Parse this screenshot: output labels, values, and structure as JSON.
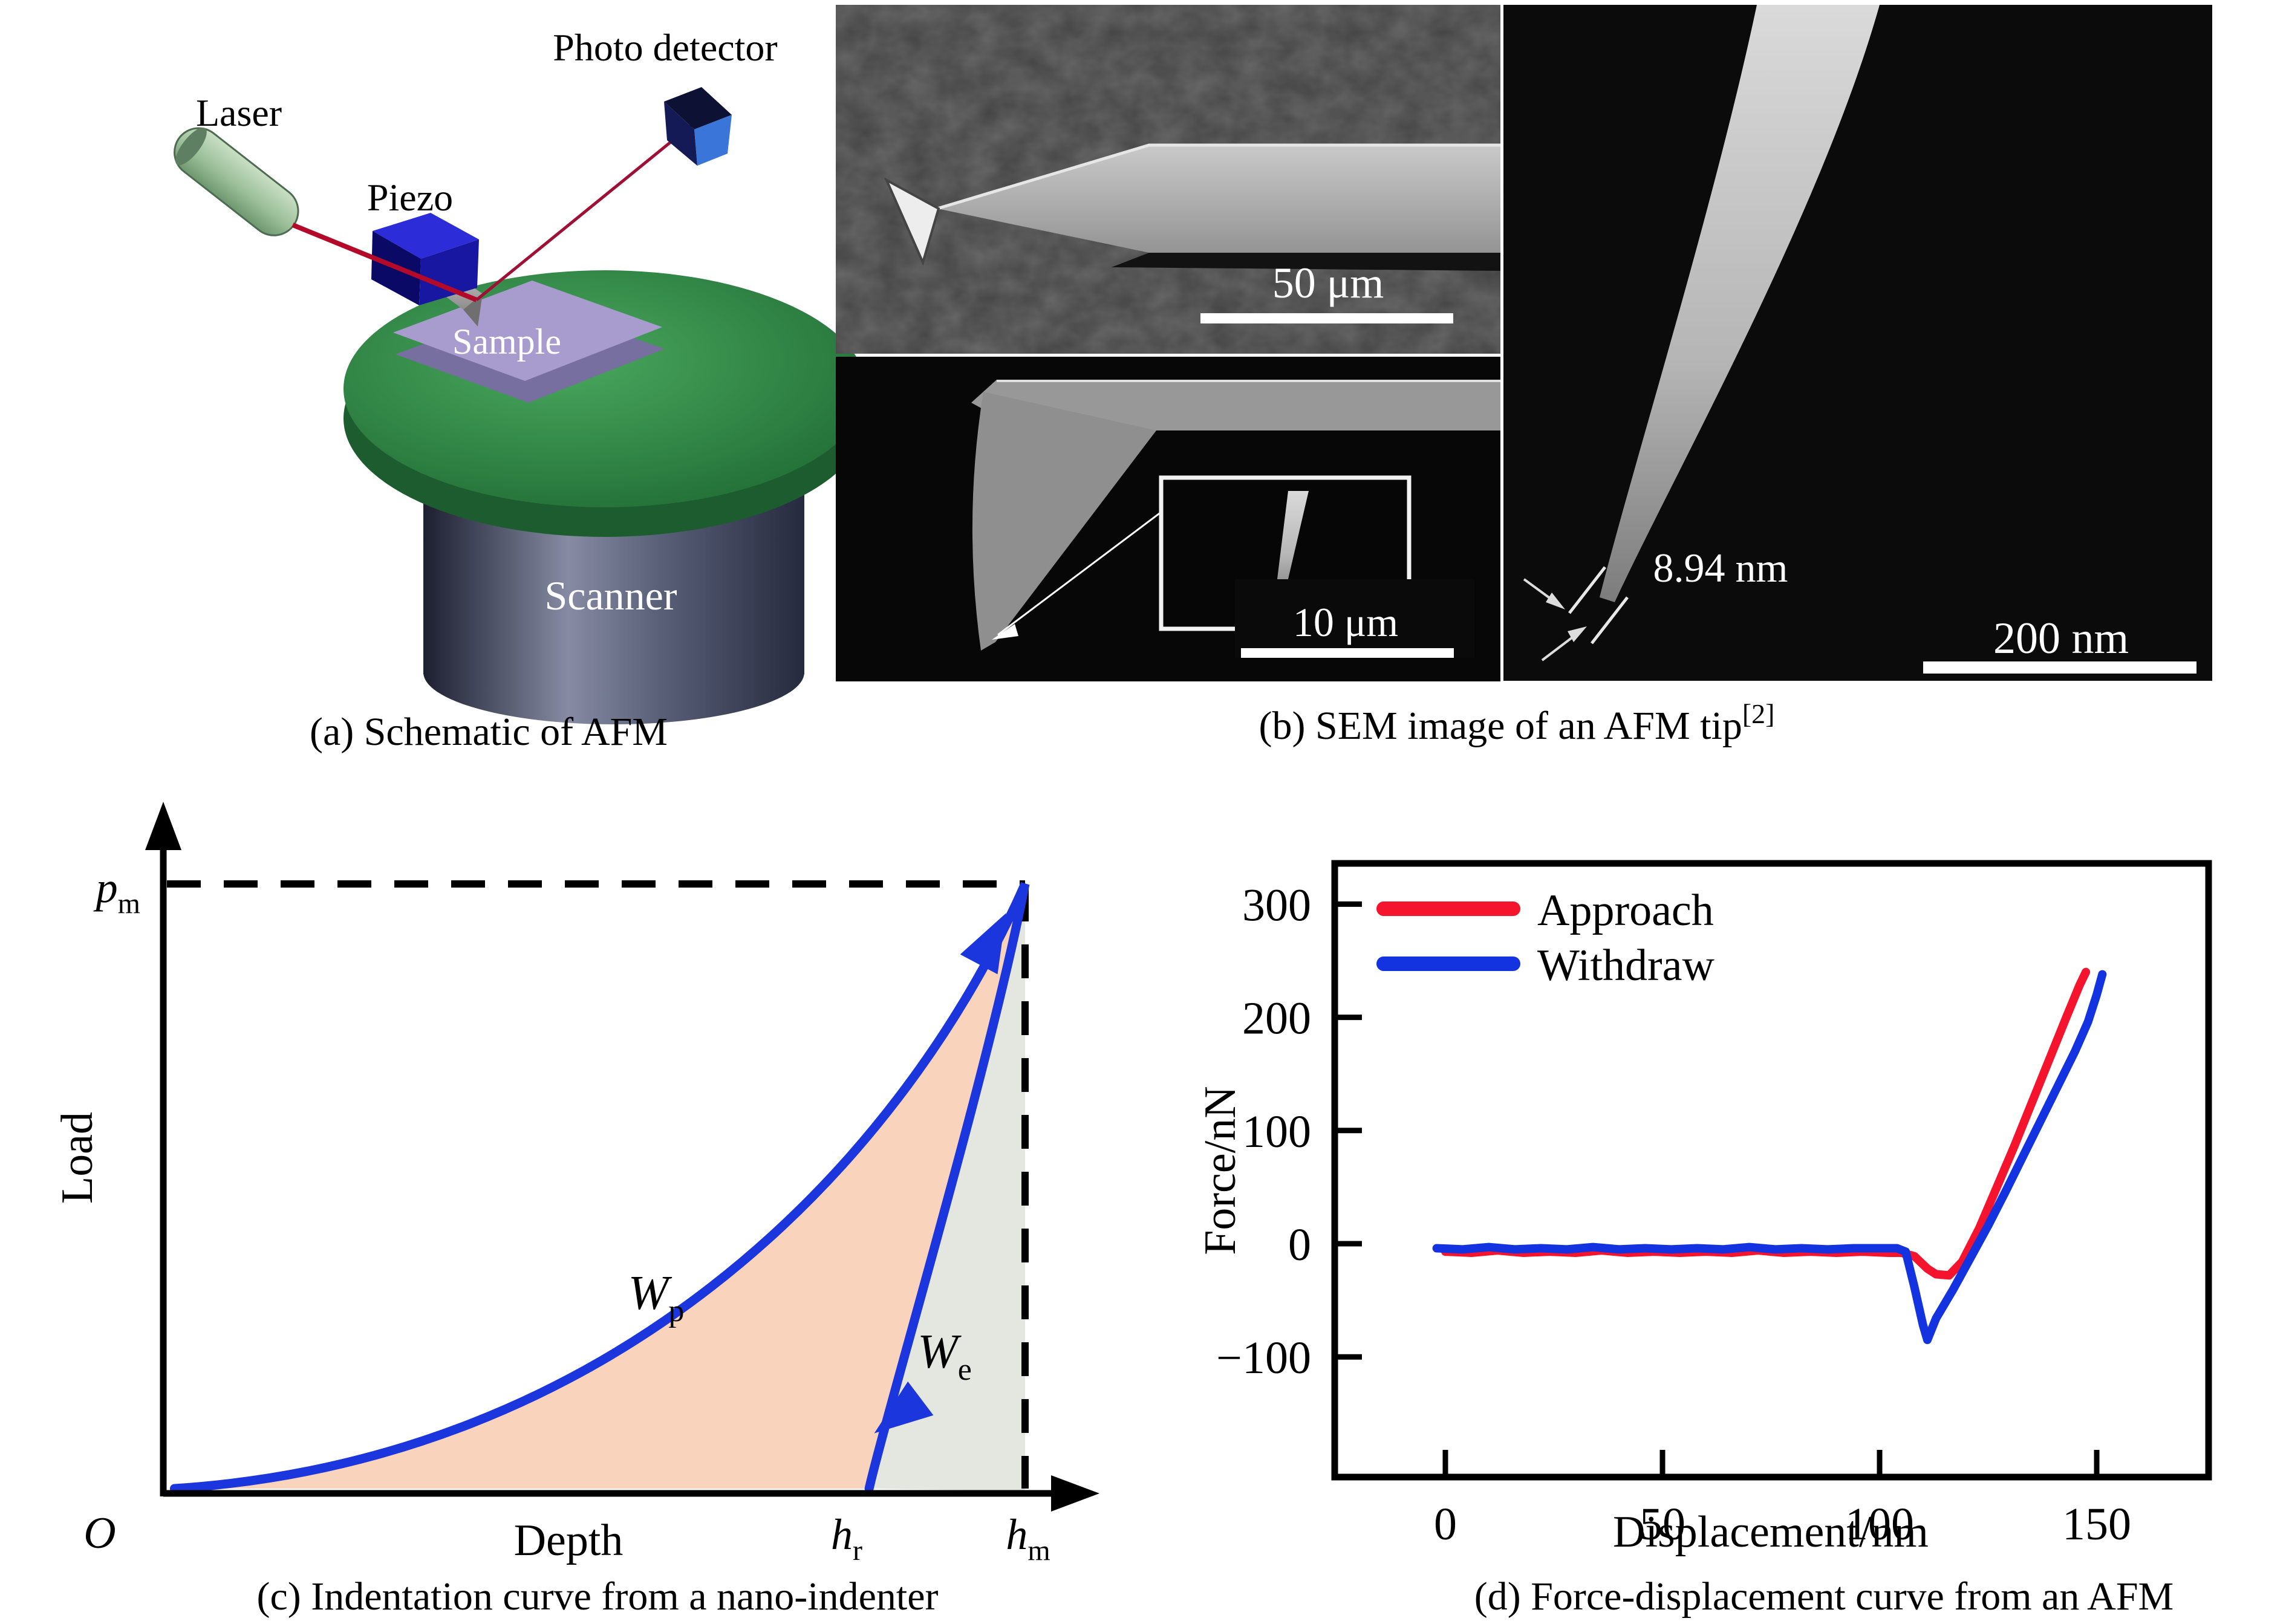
{
  "figure": {
    "panel_a": {
      "caption": "(a) Schematic of AFM",
      "labels": {
        "laser": "Laser",
        "piezo": "Piezo",
        "photo_detector": "Photo detector",
        "sample": "Sample",
        "scanner": "Scanner"
      },
      "colors": {
        "stage_green": "#2a8045",
        "scanner_gray": "#565b72",
        "sample_purple": "#a89ccf",
        "piezo_blue": "#2525c8",
        "laser_green": "#9cc09a",
        "beam_red": "#b30a2a",
        "detector_blue": "#3a76da"
      }
    },
    "panel_b": {
      "caption": "(b) SEM image of an AFM tip",
      "citation_sup": "[2]",
      "scalebar_top": "50 μm",
      "scalebar_bottom": "10 μm",
      "scalebar_right": "200 nm",
      "tip_width_annotation": "8.94 nm"
    }
  },
  "chart_data": [
    {
      "panel": "c",
      "type": "line",
      "caption": "(c) Indentation curve from a nano-indenter",
      "description": "Schematic load-depth indentation curve: loading from origin O to peak load p_m at maximum depth h_m, unloading back to residual depth h_r. W_p is the plastic work region between loading and unloading curves; W_e is the elastic work region between the unloading curve and h_m.",
      "labels": {
        "ylabel": "Load",
        "xlabel": "Depth",
        "origin": "O",
        "pm_base": "p",
        "pm_sub": "m",
        "hr_base": "h",
        "hr_sub": "r",
        "hm_base": "h",
        "hm_sub": "m",
        "wp_base": "W",
        "wp_sub": "p",
        "we_base": "W",
        "we_sub": "e"
      },
      "axes": {
        "x_range_normalized": [
          0,
          1
        ],
        "y_range_normalized": [
          0,
          1
        ],
        "h_r_fraction": 0.819,
        "grid": false
      },
      "loading_bezier": [
        [
          0.013,
          0.004
        ],
        [
          0.512,
          0.05
        ],
        [
          0.849,
          0.516
        ],
        [
          1,
          1
        ]
      ],
      "unloading_bezier": [
        [
          1,
          1
        ],
        [
          0.96,
          0.705
        ],
        [
          0.841,
          0.139
        ],
        [
          0.819,
          0.004
        ]
      ],
      "load_arrow": {
        "tip": [
          0.978,
          0.952
        ],
        "angle_deg": -62
      },
      "unload_arrow": {
        "tip": [
          0.825,
          0.095
        ],
        "angle_deg": 143
      },
      "curve_color": "#1c36dd",
      "regions": [
        {
          "label": "W_p",
          "fill": "#f9d3bc"
        },
        {
          "label": "W_e",
          "fill": "#e4e7e0"
        }
      ]
    },
    {
      "panel": "d",
      "type": "line",
      "caption": "(d) Force-displacement curve from an AFM",
      "xlabel": "Displacement/nm",
      "ylabel": "Force/nN",
      "xlim": [
        -25,
        175
      ],
      "ylim": [
        -205,
        336
      ],
      "x_ticks": [
        0,
        50,
        100,
        150
      ],
      "y_ticks": [
        300,
        200,
        100,
        0,
        -100
      ],
      "grid": false,
      "legend_position": "top-left",
      "series": [
        {
          "name": "Approach",
          "color": "#f5142e",
          "points": [
            [
              0,
              -7
            ],
            [
              6,
              -8
            ],
            [
              12,
              -6
            ],
            [
              18,
              -8
            ],
            [
              24,
              -7
            ],
            [
              30,
              -8
            ],
            [
              36,
              -6
            ],
            [
              42,
              -8
            ],
            [
              48,
              -7
            ],
            [
              54,
              -8
            ],
            [
              60,
              -7
            ],
            [
              66,
              -8
            ],
            [
              72,
              -6
            ],
            [
              78,
              -8
            ],
            [
              84,
              -7
            ],
            [
              90,
              -8
            ],
            [
              96,
              -7
            ],
            [
              102,
              -8
            ],
            [
              105,
              -8
            ],
            [
              108,
              -11
            ],
            [
              111,
              -22
            ],
            [
              113,
              -27
            ],
            [
              116,
              -28
            ],
            [
              119,
              -16
            ],
            [
              123,
              14
            ],
            [
              127,
              50
            ],
            [
              131,
              86
            ],
            [
              135,
              124
            ],
            [
              139,
              162
            ],
            [
              143,
              200
            ],
            [
              146,
              228
            ],
            [
              147.5,
              240
            ]
          ]
        },
        {
          "name": "Withdraw",
          "color": "#1433e0",
          "points": [
            [
              -2,
              -4
            ],
            [
              4,
              -5
            ],
            [
              10,
              -3
            ],
            [
              16,
              -5
            ],
            [
              22,
              -4
            ],
            [
              28,
              -5
            ],
            [
              34,
              -3
            ],
            [
              40,
              -5
            ],
            [
              46,
              -4
            ],
            [
              52,
              -5
            ],
            [
              58,
              -4
            ],
            [
              64,
              -5
            ],
            [
              70,
              -3
            ],
            [
              76,
              -5
            ],
            [
              82,
              -4
            ],
            [
              88,
              -5
            ],
            [
              94,
              -4
            ],
            [
              100,
              -4
            ],
            [
              104,
              -4
            ],
            [
              106,
              -7
            ],
            [
              108,
              -38
            ],
            [
              110,
              -72
            ],
            [
              111,
              -85
            ],
            [
              113,
              -66
            ],
            [
              117,
              -40
            ],
            [
              121,
              -12
            ],
            [
              125,
              16
            ],
            [
              129,
              46
            ],
            [
              133,
              77
            ],
            [
              137,
              108
            ],
            [
              141,
              139
            ],
            [
              145,
              170
            ],
            [
              148,
              196
            ],
            [
              150,
              220
            ],
            [
              151.3,
              238
            ]
          ]
        }
      ]
    }
  ]
}
